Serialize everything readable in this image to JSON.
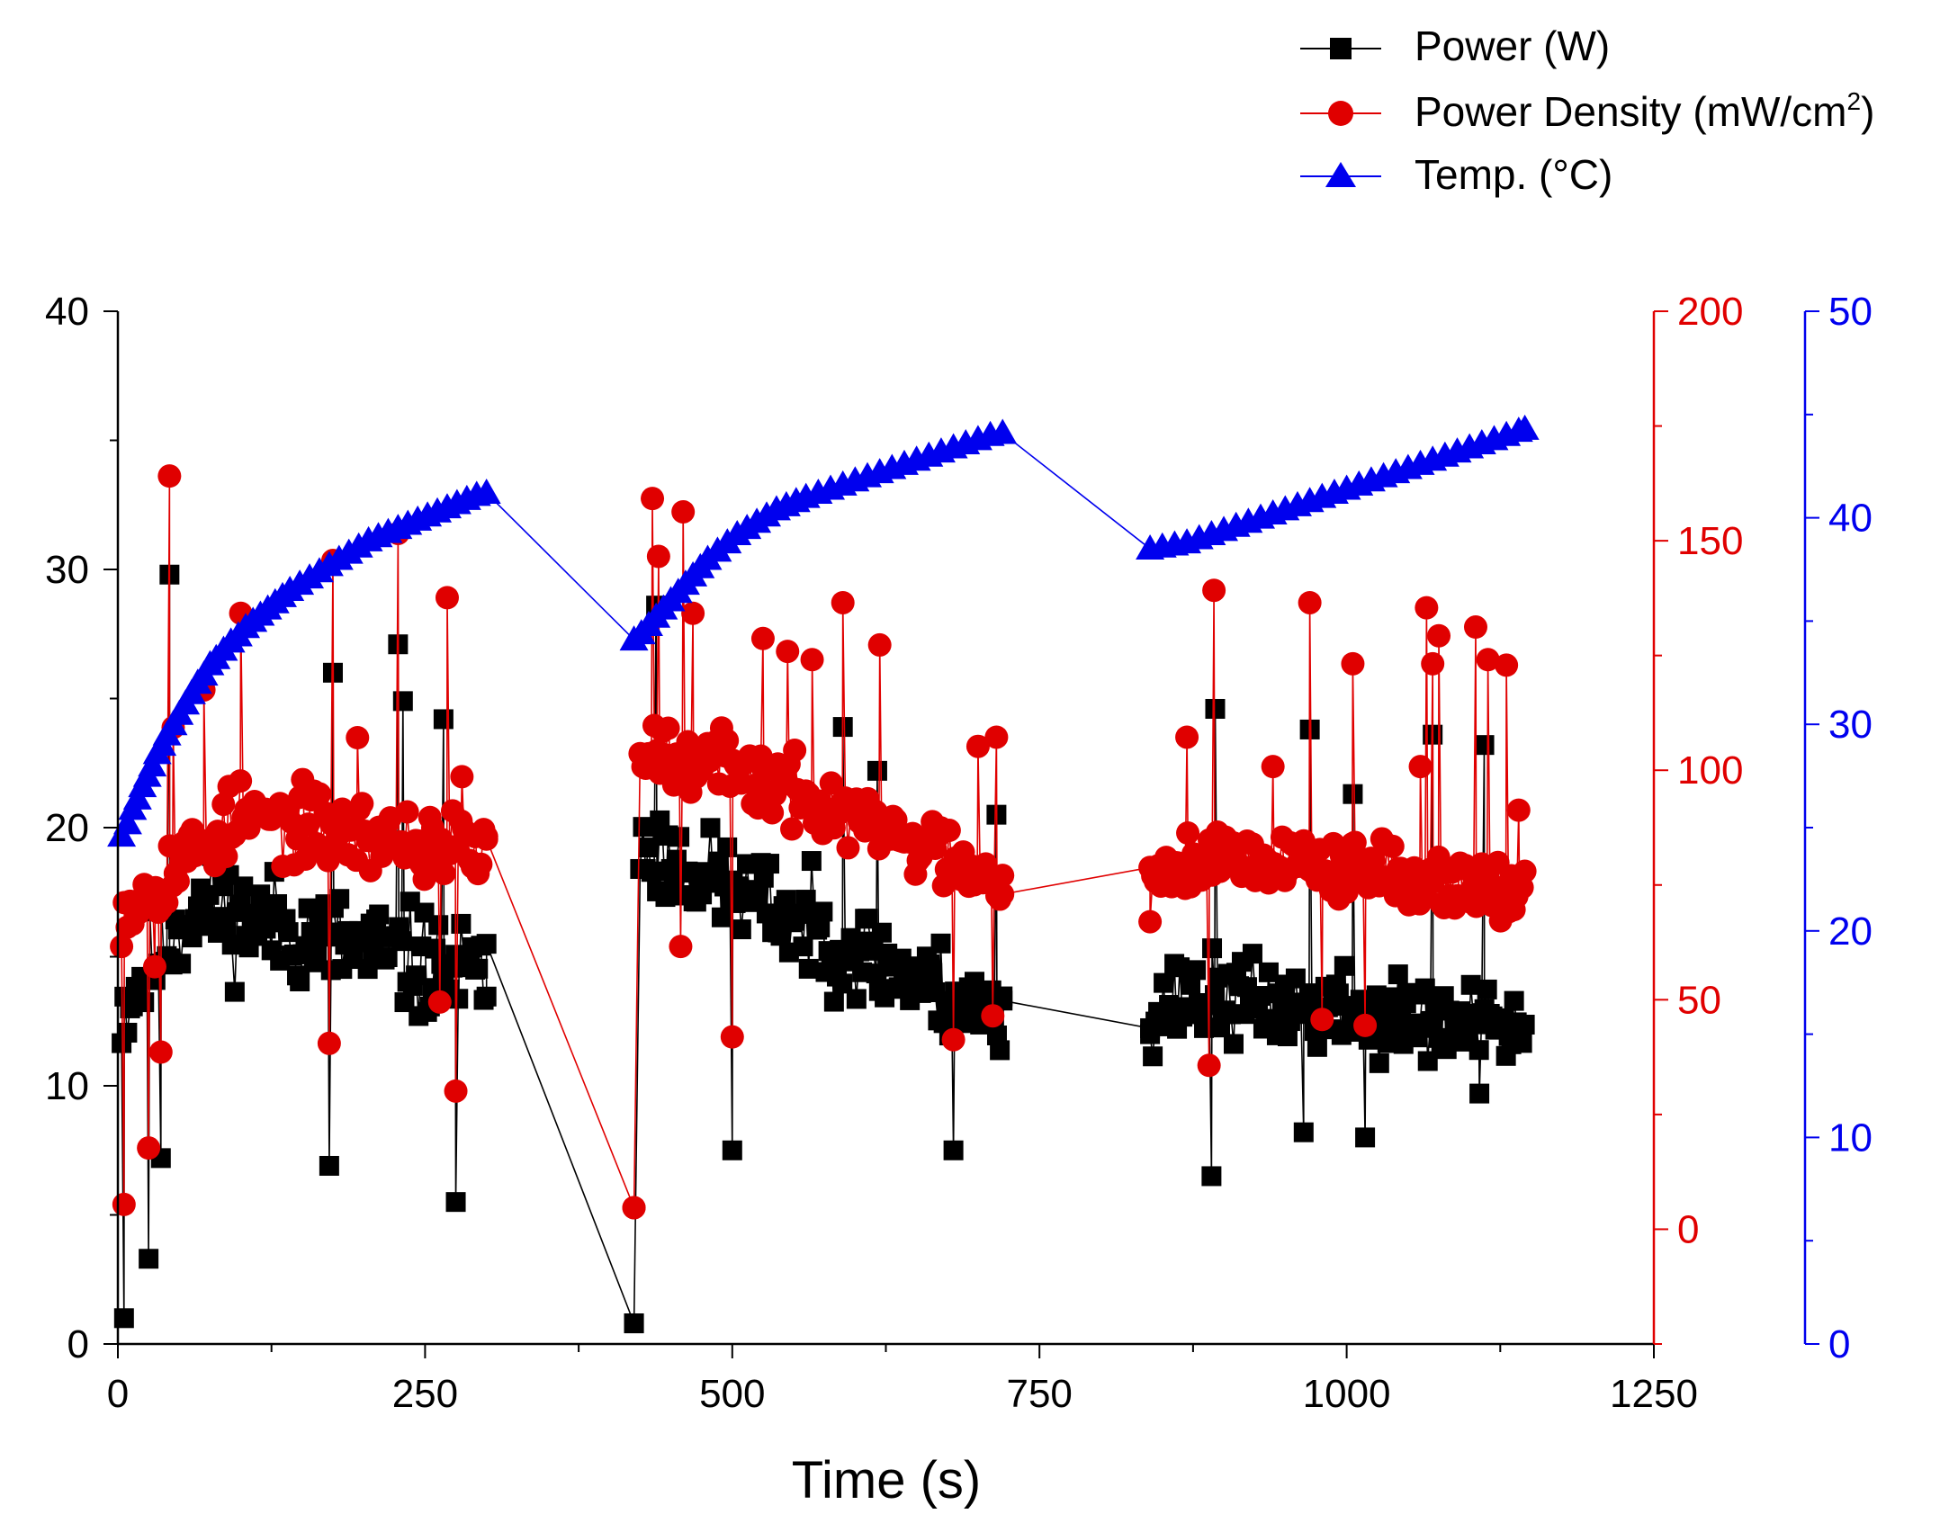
{
  "chart_data": {
    "type": "line-scatter",
    "xlabel": "Time (s)",
    "xlim": [
      0,
      1250
    ],
    "xticks": [
      0,
      250,
      500,
      750,
      1000,
      1250
    ],
    "axes": {
      "left": {
        "color": "#000000",
        "ylim": [
          0,
          40
        ],
        "ticks": [
          0,
          10,
          20,
          30,
          40
        ],
        "series": "Power (W)"
      },
      "right1": {
        "color": "#e00000",
        "ylim": [
          -25,
          200
        ],
        "ticks": [
          0,
          50,
          100,
          150,
          200
        ],
        "series": "Power Density (mW/cm2)"
      },
      "right2": {
        "color": "#0000ee",
        "ylim": [
          0,
          50
        ],
        "ticks": [
          0,
          10,
          20,
          30,
          40,
          50
        ],
        "series": "Temp. (°C)"
      }
    },
    "legend": {
      "position": "top-right",
      "items": [
        {
          "label": "Power (W)",
          "marker": "square",
          "color": "#000000"
        },
        {
          "label_main": "Power Density (mW/cm",
          "label_sup": "2",
          "label_end": ")",
          "marker": "circle",
          "color": "#e00000"
        },
        {
          "label": "Temp. (°C)",
          "marker": "triangle",
          "color": "#0000ee"
        }
      ]
    },
    "series": [
      {
        "name": "Power (W)",
        "axis": "left",
        "marker": "square",
        "color": "#000000",
        "segments": [
          {
            "t0": 3,
            "t1": 300,
            "n": 130,
            "base_start": 13,
            "base_peak": 17,
            "peak_at": 60,
            "base_end": 14,
            "spread": 3.2,
            "seed": 11
          },
          {
            "t0": 425,
            "t1": 720,
            "n": 130,
            "base_start": 19,
            "base_peak": 19,
            "peak_at": 440,
            "base_end": 12.5,
            "spread": 2.8,
            "seed": 23
          },
          {
            "t0": 840,
            "t1": 1145,
            "n": 140,
            "base_start": 13,
            "base_peak": 13.5,
            "peak_at": 880,
            "base_end": 12,
            "spread": 2.5,
            "seed": 37
          }
        ],
        "special": [
          [
            5,
            1.0
          ],
          [
            42,
            29.8
          ],
          [
            25,
            3.3
          ],
          [
            35,
            7.2
          ],
          [
            175,
            26.0
          ],
          [
            228,
            27.1
          ],
          [
            232,
            24.9
          ],
          [
            265,
            24.2
          ],
          [
            275,
            5.5
          ],
          [
            172,
            6.9
          ],
          [
            420,
            0.8
          ],
          [
            438,
            28.6
          ],
          [
            500,
            7.5
          ],
          [
            590,
            23.9
          ],
          [
            618,
            22.2
          ],
          [
            680,
            7.5
          ],
          [
            715,
            20.5
          ],
          [
            890,
            6.5
          ],
          [
            893,
            24.6
          ],
          [
            970,
            23.8
          ],
          [
            1005,
            21.3
          ],
          [
            1070,
            23.6
          ],
          [
            1108,
            9.7
          ],
          [
            1112,
            23.2
          ],
          [
            965,
            8.2
          ],
          [
            1015,
            8.0
          ]
        ],
        "bridges": [
          [
            300,
            15.5
          ],
          [
            420,
            0.8
          ],
          [
            720,
            13.3
          ],
          [
            840,
            12.0
          ]
        ]
      },
      {
        "name": "Power Density (mW/cm2)",
        "axis": "right1",
        "marker": "circle",
        "color": "#e00000",
        "segments": [
          {
            "t0": 3,
            "t1": 300,
            "n": 130,
            "base_start": 70,
            "base_peak": 90,
            "peak_at": 100,
            "base_end": 82,
            "spread": 12,
            "seed": 53
          },
          {
            "t0": 425,
            "t1": 720,
            "n": 130,
            "base_start": 105,
            "base_peak": 106,
            "peak_at": 440,
            "base_end": 77,
            "spread": 11,
            "seed": 67
          },
          {
            "t0": 840,
            "t1": 1145,
            "n": 140,
            "base_start": 78,
            "base_peak": 82,
            "peak_at": 890,
            "base_end": 74,
            "spread": 10,
            "seed": 79
          }
        ],
        "special": [
          [
            5,
            5.4
          ],
          [
            42,
            164.1
          ],
          [
            45,
            109.3
          ],
          [
            25,
            17.7
          ],
          [
            30,
            57.2
          ],
          [
            35,
            38.6
          ],
          [
            70,
            117.5
          ],
          [
            100,
            134.2
          ],
          [
            175,
            145.7
          ],
          [
            172,
            40.5
          ],
          [
            195,
            107.1
          ],
          [
            228,
            151.6
          ],
          [
            262,
            49.5
          ],
          [
            268,
            137.6
          ],
          [
            275,
            30.1
          ],
          [
            280,
            98.6
          ],
          [
            420,
            4.7
          ],
          [
            435,
            159.2
          ],
          [
            440,
            146.6
          ],
          [
            460,
            156.3
          ],
          [
            468,
            134.2
          ],
          [
            458,
            61.6
          ],
          [
            500,
            41.9
          ],
          [
            525,
            128.7
          ],
          [
            545,
            125.9
          ],
          [
            565,
            124.1
          ],
          [
            590,
            136.5
          ],
          [
            620,
            127.3
          ],
          [
            680,
            41.3
          ],
          [
            700,
            105.2
          ],
          [
            715,
            107.2
          ],
          [
            712,
            46.5
          ],
          [
            870,
            107.2
          ],
          [
            888,
            35.7
          ],
          [
            892,
            139.2
          ],
          [
            940,
            100.8
          ],
          [
            970,
            136.5
          ],
          [
            980,
            45.7
          ],
          [
            1005,
            123.2
          ],
          [
            1015,
            44.4
          ],
          [
            1060,
            100.8
          ],
          [
            1065,
            135.4
          ],
          [
            1070,
            123.2
          ],
          [
            1075,
            129.3
          ],
          [
            1105,
            131.2
          ],
          [
            1115,
            124.1
          ],
          [
            1130,
            122.9
          ],
          [
            1140,
            91.3
          ]
        ],
        "bridges": [
          [
            300,
            85.0
          ],
          [
            420,
            4.7
          ],
          [
            720,
            73.0
          ],
          [
            840,
            67.0
          ]
        ]
      },
      {
        "name": "Temp. (°C)",
        "axis": "right2",
        "marker": "triangle",
        "color": "#0000ee",
        "points": [
          [
            3,
            24.6
          ],
          [
            8,
            25.2
          ],
          [
            12,
            25.9
          ],
          [
            16,
            26.4
          ],
          [
            20,
            27.0
          ],
          [
            24,
            27.5
          ],
          [
            28,
            28.0
          ],
          [
            32,
            28.6
          ],
          [
            36,
            29.0
          ],
          [
            40,
            29.5
          ],
          [
            45,
            30.0
          ],
          [
            50,
            30.5
          ],
          [
            55,
            31.0
          ],
          [
            60,
            31.5
          ],
          [
            65,
            32.0
          ],
          [
            70,
            32.4
          ],
          [
            75,
            32.9
          ],
          [
            80,
            33.2
          ],
          [
            86,
            33.6
          ],
          [
            92,
            34.0
          ],
          [
            98,
            34.3
          ],
          [
            104,
            34.7
          ],
          [
            110,
            35.0
          ],
          [
            116,
            35.3
          ],
          [
            122,
            35.6
          ],
          [
            128,
            35.9
          ],
          [
            134,
            36.2
          ],
          [
            140,
            36.5
          ],
          [
            148,
            36.8
          ],
          [
            156,
            37.1
          ],
          [
            164,
            37.4
          ],
          [
            172,
            37.7
          ],
          [
            180,
            38.0
          ],
          [
            188,
            38.3
          ],
          [
            196,
            38.6
          ],
          [
            204,
            38.9
          ],
          [
            212,
            39.1
          ],
          [
            220,
            39.3
          ],
          [
            228,
            39.5
          ],
          [
            236,
            39.7
          ],
          [
            244,
            39.9
          ],
          [
            252,
            40.1
          ],
          [
            260,
            40.3
          ],
          [
            268,
            40.5
          ],
          [
            276,
            40.7
          ],
          [
            284,
            40.9
          ],
          [
            292,
            41.1
          ],
          [
            300,
            41.2
          ],
          [
            420,
            34.1
          ],
          [
            426,
            34.4
          ],
          [
            432,
            34.8
          ],
          [
            438,
            35.2
          ],
          [
            444,
            35.6
          ],
          [
            450,
            36.0
          ],
          [
            456,
            36.4
          ],
          [
            462,
            36.8
          ],
          [
            468,
            37.2
          ],
          [
            474,
            37.6
          ],
          [
            480,
            38.0
          ],
          [
            488,
            38.4
          ],
          [
            496,
            38.8
          ],
          [
            504,
            39.2
          ],
          [
            512,
            39.5
          ],
          [
            520,
            39.8
          ],
          [
            528,
            40.1
          ],
          [
            536,
            40.4
          ],
          [
            544,
            40.6
          ],
          [
            552,
            40.8
          ],
          [
            560,
            41.0
          ],
          [
            570,
            41.2
          ],
          [
            580,
            41.4
          ],
          [
            590,
            41.6
          ],
          [
            600,
            41.8
          ],
          [
            610,
            42.0
          ],
          [
            620,
            42.2
          ],
          [
            630,
            42.4
          ],
          [
            640,
            42.6
          ],
          [
            650,
            42.8
          ],
          [
            660,
            43.0
          ],
          [
            670,
            43.2
          ],
          [
            680,
            43.4
          ],
          [
            690,
            43.6
          ],
          [
            700,
            43.8
          ],
          [
            710,
            44.0
          ],
          [
            720,
            44.1
          ],
          [
            840,
            38.5
          ],
          [
            850,
            38.6
          ],
          [
            860,
            38.7
          ],
          [
            870,
            38.8
          ],
          [
            880,
            39.0
          ],
          [
            890,
            39.2
          ],
          [
            900,
            39.4
          ],
          [
            910,
            39.6
          ],
          [
            920,
            39.8
          ],
          [
            930,
            40.0
          ],
          [
            940,
            40.2
          ],
          [
            950,
            40.4
          ],
          [
            960,
            40.6
          ],
          [
            970,
            40.8
          ],
          [
            980,
            41.0
          ],
          [
            990,
            41.2
          ],
          [
            1000,
            41.4
          ],
          [
            1010,
            41.6
          ],
          [
            1020,
            41.8
          ],
          [
            1030,
            42.0
          ],
          [
            1040,
            42.2
          ],
          [
            1050,
            42.4
          ],
          [
            1060,
            42.6
          ],
          [
            1070,
            42.8
          ],
          [
            1080,
            43.0
          ],
          [
            1090,
            43.2
          ],
          [
            1100,
            43.4
          ],
          [
            1110,
            43.6
          ],
          [
            1120,
            43.8
          ],
          [
            1130,
            44.0
          ],
          [
            1140,
            44.2
          ],
          [
            1145,
            44.3
          ]
        ]
      }
    ]
  }
}
